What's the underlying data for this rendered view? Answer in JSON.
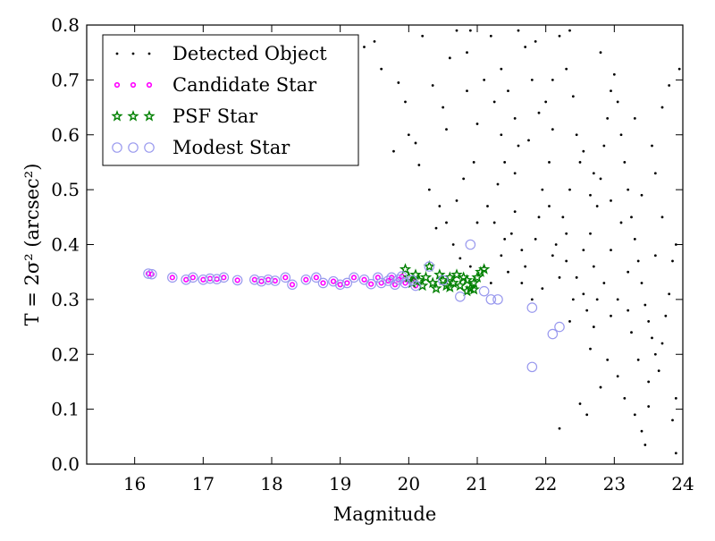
{
  "chart_data": {
    "type": "scatter",
    "xlabel": "Magnitude",
    "ylabel": "T = 2σ² (arcsec²)",
    "xlim": [
      15.3,
      24.0
    ],
    "ylim": [
      0.0,
      0.8
    ],
    "x_ticks": [
      "16",
      "17",
      "18",
      "19",
      "20",
      "21",
      "22",
      "23",
      "24"
    ],
    "y_ticks": [
      "0.0",
      "0.1",
      "0.2",
      "0.3",
      "0.4",
      "0.5",
      "0.6",
      "0.7",
      "0.8"
    ],
    "grid": false,
    "legend_position": "top-left",
    "series": [
      {
        "name": "Detected Object",
        "marker": "dot",
        "color": "#000000",
        "points": [
          [
            19.35,
            0.76
          ],
          [
            19.5,
            0.77
          ],
          [
            19.6,
            0.72
          ],
          [
            19.85,
            0.695
          ],
          [
            19.1,
            0.745
          ],
          [
            19.95,
            0.66
          ],
          [
            19.78,
            0.57
          ],
          [
            20.1,
            0.585
          ],
          [
            20.0,
            0.6
          ],
          [
            20.15,
            0.545
          ],
          [
            20.3,
            0.5
          ],
          [
            20.45,
            0.47
          ],
          [
            20.4,
            0.43
          ],
          [
            20.5,
            0.65
          ],
          [
            20.6,
            0.74
          ],
          [
            20.7,
            0.79
          ],
          [
            20.9,
            0.79
          ],
          [
            20.85,
            0.75
          ],
          [
            21.1,
            0.7
          ],
          [
            21.0,
            0.62
          ],
          [
            20.95,
            0.55
          ],
          [
            20.8,
            0.52
          ],
          [
            20.7,
            0.48
          ],
          [
            20.55,
            0.44
          ],
          [
            20.65,
            0.4
          ],
          [
            20.75,
            0.375
          ],
          [
            20.9,
            0.36
          ],
          [
            21.2,
            0.78
          ],
          [
            21.35,
            0.72
          ],
          [
            21.45,
            0.68
          ],
          [
            21.55,
            0.63
          ],
          [
            21.6,
            0.58
          ],
          [
            21.4,
            0.55
          ],
          [
            21.3,
            0.51
          ],
          [
            21.15,
            0.47
          ],
          [
            21.25,
            0.44
          ],
          [
            21.5,
            0.42
          ],
          [
            21.65,
            0.39
          ],
          [
            21.7,
            0.36
          ],
          [
            21.85,
            0.41
          ],
          [
            21.9,
            0.45
          ],
          [
            21.95,
            0.5
          ],
          [
            22.05,
            0.55
          ],
          [
            22.1,
            0.61
          ],
          [
            22.0,
            0.66
          ],
          [
            21.8,
            0.7
          ],
          [
            21.7,
            0.76
          ],
          [
            21.6,
            0.79
          ],
          [
            22.2,
            0.78
          ],
          [
            22.3,
            0.72
          ],
          [
            22.4,
            0.67
          ],
          [
            22.45,
            0.6
          ],
          [
            22.5,
            0.55
          ],
          [
            22.35,
            0.5
          ],
          [
            22.25,
            0.45
          ],
          [
            22.15,
            0.4
          ],
          [
            22.3,
            0.37
          ],
          [
            22.45,
            0.34
          ],
          [
            22.55,
            0.31
          ],
          [
            22.6,
            0.28
          ],
          [
            22.7,
            0.25
          ],
          [
            22.65,
            0.42
          ],
          [
            22.75,
            0.47
          ],
          [
            22.8,
            0.52
          ],
          [
            22.85,
            0.58
          ],
          [
            22.9,
            0.63
          ],
          [
            22.95,
            0.68
          ],
          [
            23.0,
            0.71
          ],
          [
            23.05,
            0.66
          ],
          [
            23.1,
            0.6
          ],
          [
            23.15,
            0.55
          ],
          [
            23.2,
            0.5
          ],
          [
            23.25,
            0.45
          ],
          [
            23.3,
            0.41
          ],
          [
            23.35,
            0.37
          ],
          [
            23.4,
            0.33
          ],
          [
            23.45,
            0.29
          ],
          [
            23.5,
            0.26
          ],
          [
            23.55,
            0.23
          ],
          [
            23.6,
            0.2
          ],
          [
            23.65,
            0.17
          ],
          [
            23.7,
            0.22
          ],
          [
            23.75,
            0.27
          ],
          [
            23.8,
            0.31
          ],
          [
            23.85,
            0.37
          ],
          [
            23.9,
            0.4
          ],
          [
            23.6,
            0.53
          ],
          [
            23.55,
            0.58
          ],
          [
            23.7,
            0.65
          ],
          [
            23.8,
            0.69
          ],
          [
            23.95,
            0.72
          ],
          [
            23.9,
            0.12
          ],
          [
            23.85,
            0.08
          ],
          [
            23.5,
            0.15
          ],
          [
            23.45,
            0.035
          ],
          [
            23.4,
            0.06
          ],
          [
            23.3,
            0.09
          ],
          [
            23.15,
            0.12
          ],
          [
            23.05,
            0.16
          ],
          [
            22.9,
            0.19
          ],
          [
            22.8,
            0.14
          ],
          [
            22.6,
            0.09
          ],
          [
            22.5,
            0.11
          ],
          [
            22.2,
            0.065
          ],
          [
            22.95,
            0.27
          ],
          [
            22.85,
            0.33
          ],
          [
            22.7,
            0.36
          ],
          [
            22.55,
            0.39
          ],
          [
            22.4,
            0.3
          ],
          [
            22.2,
            0.34
          ],
          [
            22.1,
            0.38
          ],
          [
            21.95,
            0.32
          ],
          [
            21.8,
            0.3
          ],
          [
            21.65,
            0.33
          ],
          [
            21.45,
            0.35
          ],
          [
            21.35,
            0.38
          ],
          [
            21.2,
            0.33
          ],
          [
            21.1,
            0.36
          ],
          [
            23.05,
            0.3
          ],
          [
            23.2,
            0.35
          ],
          [
            23.25,
            0.24
          ],
          [
            23.35,
            0.19
          ],
          [
            23.1,
            0.44
          ],
          [
            22.95,
            0.48
          ],
          [
            22.7,
            0.53
          ],
          [
            22.55,
            0.57
          ],
          [
            22.1,
            0.7
          ],
          [
            21.9,
            0.64
          ],
          [
            21.75,
            0.59
          ],
          [
            21.55,
            0.53
          ],
          [
            21.35,
            0.6
          ],
          [
            21.25,
            0.66
          ],
          [
            20.85,
            0.68
          ],
          [
            20.55,
            0.61
          ],
          [
            20.35,
            0.69
          ],
          [
            20.2,
            0.78
          ],
          [
            21.0,
            0.44
          ],
          [
            21.55,
            0.46
          ],
          [
            22.05,
            0.47
          ],
          [
            22.65,
            0.49
          ],
          [
            23.4,
            0.49
          ],
          [
            23.7,
            0.45
          ],
          [
            23.3,
            0.63
          ],
          [
            22.8,
            0.75
          ],
          [
            22.35,
            0.79
          ],
          [
            21.85,
            0.77
          ],
          [
            21.4,
            0.41
          ],
          [
            22.3,
            0.42
          ],
          [
            22.95,
            0.39
          ],
          [
            23.6,
            0.38
          ],
          [
            23.2,
            0.28
          ],
          [
            22.75,
            0.3
          ],
          [
            22.35,
            0.26
          ],
          [
            23.9,
            0.02
          ],
          [
            23.5,
            0.105
          ],
          [
            22.65,
            0.21
          ]
        ]
      },
      {
        "name": "Candidate Star",
        "marker": "circle",
        "color": "#ff00ff",
        "points": [
          [
            16.2,
            0.347
          ],
          [
            16.25,
            0.346
          ],
          [
            16.55,
            0.34
          ],
          [
            16.75,
            0.336
          ],
          [
            16.85,
            0.34
          ],
          [
            17.0,
            0.336
          ],
          [
            17.1,
            0.338
          ],
          [
            17.2,
            0.337
          ],
          [
            17.3,
            0.34
          ],
          [
            17.5,
            0.335
          ],
          [
            17.75,
            0.336
          ],
          [
            17.85,
            0.333
          ],
          [
            17.95,
            0.336
          ],
          [
            18.05,
            0.334
          ],
          [
            18.2,
            0.34
          ],
          [
            18.3,
            0.327
          ],
          [
            18.5,
            0.336
          ],
          [
            18.65,
            0.34
          ],
          [
            18.75,
            0.33
          ],
          [
            18.9,
            0.333
          ],
          [
            19.0,
            0.327
          ],
          [
            19.1,
            0.33
          ],
          [
            19.2,
            0.34
          ],
          [
            19.35,
            0.336
          ],
          [
            19.45,
            0.328
          ],
          [
            19.55,
            0.34
          ],
          [
            19.6,
            0.33
          ],
          [
            19.7,
            0.334
          ],
          [
            19.75,
            0.34
          ],
          [
            19.8,
            0.327
          ],
          [
            19.85,
            0.336
          ],
          [
            19.9,
            0.342
          ],
          [
            19.95,
            0.33
          ],
          [
            20.05,
            0.335
          ],
          [
            20.1,
            0.325
          ]
        ]
      },
      {
        "name": "PSF Star",
        "marker": "star",
        "color": "#008000",
        "points": [
          [
            19.95,
            0.355
          ],
          [
            20.0,
            0.34
          ],
          [
            20.05,
            0.33
          ],
          [
            20.1,
            0.345
          ],
          [
            20.15,
            0.335
          ],
          [
            20.2,
            0.325
          ],
          [
            20.25,
            0.34
          ],
          [
            20.3,
            0.36
          ],
          [
            20.35,
            0.33
          ],
          [
            20.4,
            0.32
          ],
          [
            20.45,
            0.345
          ],
          [
            20.5,
            0.335
          ],
          [
            20.55,
            0.325
          ],
          [
            20.6,
            0.34
          ],
          [
            20.65,
            0.33
          ],
          [
            20.7,
            0.345
          ],
          [
            20.75,
            0.325
          ],
          [
            20.8,
            0.34
          ],
          [
            20.85,
            0.335
          ],
          [
            20.9,
            0.32
          ],
          [
            20.95,
            0.33
          ],
          [
            21.0,
            0.34
          ],
          [
            21.05,
            0.35
          ],
          [
            21.1,
            0.355
          ],
          [
            20.85,
            0.315
          ],
          [
            20.95,
            0.318
          ],
          [
            20.6,
            0.322
          ]
        ]
      },
      {
        "name": "Modest Star",
        "marker": "open-circle",
        "color": "#9999ee",
        "points": [
          [
            16.2,
            0.347
          ],
          [
            16.25,
            0.346
          ],
          [
            16.55,
            0.34
          ],
          [
            16.75,
            0.336
          ],
          [
            16.85,
            0.34
          ],
          [
            17.0,
            0.336
          ],
          [
            17.1,
            0.338
          ],
          [
            17.2,
            0.337
          ],
          [
            17.3,
            0.34
          ],
          [
            17.5,
            0.335
          ],
          [
            17.75,
            0.336
          ],
          [
            17.85,
            0.333
          ],
          [
            17.95,
            0.336
          ],
          [
            18.05,
            0.334
          ],
          [
            18.2,
            0.34
          ],
          [
            18.3,
            0.327
          ],
          [
            18.5,
            0.336
          ],
          [
            18.65,
            0.34
          ],
          [
            18.75,
            0.33
          ],
          [
            18.9,
            0.333
          ],
          [
            19.0,
            0.327
          ],
          [
            19.1,
            0.33
          ],
          [
            19.2,
            0.34
          ],
          [
            19.35,
            0.336
          ],
          [
            19.45,
            0.328
          ],
          [
            19.55,
            0.34
          ],
          [
            19.6,
            0.33
          ],
          [
            19.7,
            0.334
          ],
          [
            19.75,
            0.34
          ],
          [
            19.8,
            0.327
          ],
          [
            19.85,
            0.336
          ],
          [
            19.9,
            0.342
          ],
          [
            19.95,
            0.33
          ],
          [
            20.05,
            0.335
          ],
          [
            20.1,
            0.325
          ],
          [
            20.3,
            0.36
          ],
          [
            20.5,
            0.335
          ],
          [
            20.75,
            0.305
          ],
          [
            20.9,
            0.4
          ],
          [
            21.1,
            0.315
          ],
          [
            21.2,
            0.3
          ],
          [
            21.3,
            0.3
          ],
          [
            21.8,
            0.285
          ],
          [
            22.1,
            0.237
          ],
          [
            22.2,
            0.25
          ],
          [
            21.8,
            0.177
          ]
        ]
      }
    ]
  }
}
